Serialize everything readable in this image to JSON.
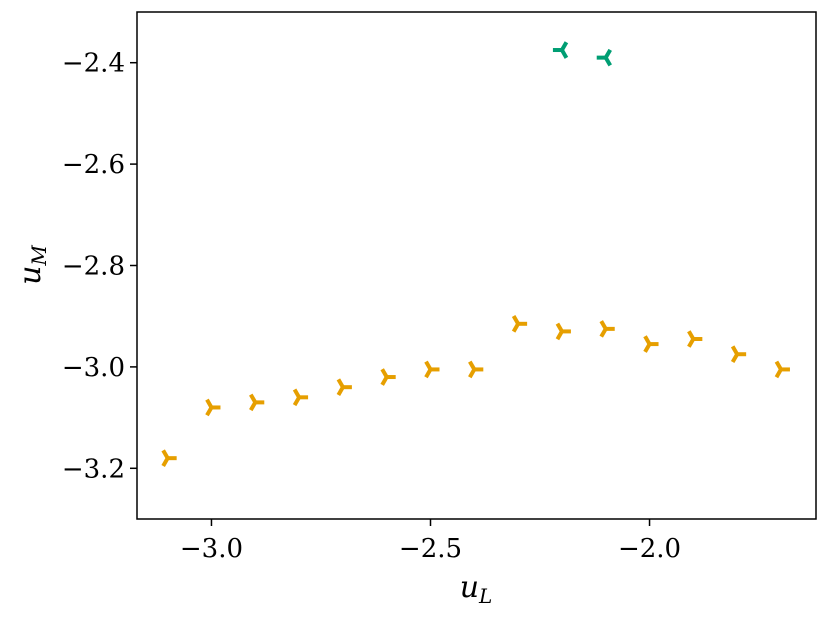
{
  "chart_data": {
    "type": "scatter",
    "title": "",
    "xlabel": "u",
    "xlabel_sub": "L",
    "ylabel": "u",
    "ylabel_sub": "M",
    "xlim": [
      -3.17,
      -1.62
    ],
    "ylim": [
      -3.3,
      -2.3
    ],
    "xticks": [
      -3.0,
      -2.5,
      -2.0
    ],
    "xtick_labels": [
      "−3.0",
      "−2.5",
      "−2.0"
    ],
    "yticks": [
      -3.2,
      -3.0,
      -2.8,
      -2.6,
      -2.4
    ],
    "ytick_labels": [
      "−3.2",
      "−3.0",
      "−2.8",
      "−2.6",
      "−2.4"
    ],
    "grid": false,
    "legend": "none",
    "series": [
      {
        "color": "#E69F00",
        "marker": "tri-right",
        "points": [
          {
            "x": -3.1,
            "y": -3.18
          },
          {
            "x": -3.0,
            "y": -3.08
          },
          {
            "x": -2.9,
            "y": -3.07
          },
          {
            "x": -2.8,
            "y": -3.06
          },
          {
            "x": -2.7,
            "y": -3.04
          },
          {
            "x": -2.6,
            "y": -3.02
          },
          {
            "x": -2.5,
            "y": -3.005
          },
          {
            "x": -2.4,
            "y": -3.005
          },
          {
            "x": -2.3,
            "y": -2.915
          },
          {
            "x": -2.2,
            "y": -2.93
          },
          {
            "x": -2.1,
            "y": -2.925
          },
          {
            "x": -2.0,
            "y": -2.955
          },
          {
            "x": -1.9,
            "y": -2.945
          },
          {
            "x": -1.8,
            "y": -2.975
          },
          {
            "x": -1.7,
            "y": -3.005
          }
        ]
      },
      {
        "color": "#009E73",
        "marker": "tri-left",
        "points": [
          {
            "x": -2.2,
            "y": -2.375
          },
          {
            "x": -2.1,
            "y": -2.39
          }
        ]
      }
    ]
  }
}
